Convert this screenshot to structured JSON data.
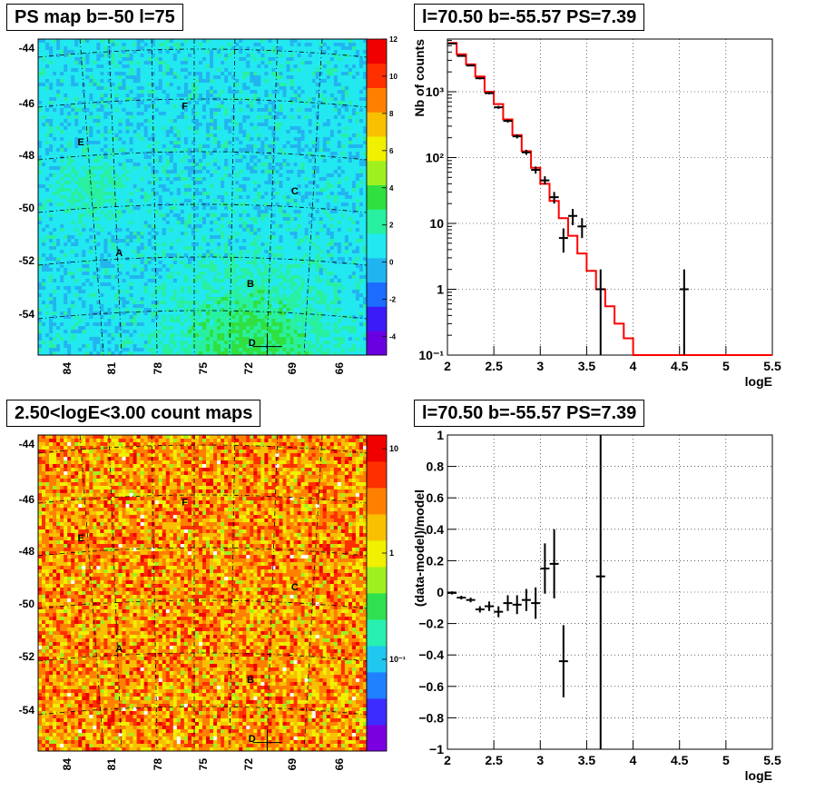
{
  "panels": {
    "ps_map_title": "PS map b=-50 l=75",
    "spectrum_title": "l=70.50 b=-55.57 PS=7.39",
    "count_map_title": "2.50<logE<3.00 count maps",
    "residual_title": "l=70.50 b=-55.57 PS=7.39"
  },
  "chart_data": [
    {
      "type": "heatmap",
      "title": "PS map b=-50 l=75",
      "colormap": [
        "#6a00e0",
        "#3b1cf8",
        "#1c6cff",
        "#22b4f0",
        "#22e8f0",
        "#28f0a0",
        "#30e040",
        "#a0f020",
        "#f0f000",
        "#f8c000",
        "#ff8000",
        "#ff3000",
        "#f00000"
      ],
      "colorbar": {
        "ticks": [
          "12",
          "10",
          "8",
          "6",
          "4",
          "2",
          "0",
          "-2",
          "-4"
        ],
        "range": [
          -5,
          12
        ]
      },
      "y_ticks": [
        "-44",
        "-46",
        "-48",
        "-50",
        "-52",
        "-54"
      ],
      "x_ticks": [
        "84",
        "81",
        "78",
        "75",
        "72",
        "69",
        "66"
      ],
      "sources": [
        {
          "label": "F",
          "lon": 75.9,
          "lat": -46.2
        },
        {
          "label": "E",
          "lon": 82.7,
          "lat": -47.6
        },
        {
          "label": "C",
          "lon": 68.7,
          "lat": -49.5
        },
        {
          "label": "A",
          "lon": 80.2,
          "lat": -51.9
        },
        {
          "label": "B",
          "lon": 71.6,
          "lat": -53.1
        },
        {
          "label": "D",
          "lon": 71.5,
          "lat": -55.4
        }
      ],
      "marker": {
        "lon": 70.5,
        "lat": -55.57
      }
    },
    {
      "type": "line",
      "title": "l=70.50 b=-55.57 PS=7.39",
      "xlabel": "logE",
      "ylabel": "Nb of counts",
      "x_ticks": [
        "2",
        "2.5",
        "3",
        "3.5",
        "4",
        "4.5",
        "5",
        "5.5"
      ],
      "y_ticks": [
        "10⁻¹",
        "1",
        "10",
        "10²",
        "10³"
      ],
      "xlim": [
        2,
        5.5
      ],
      "ylim_log10": [
        -1,
        3.8
      ],
      "log_y": true,
      "model_series": {
        "name": "model",
        "color": "#ff0000",
        "bins": [
          2.0,
          2.1,
          2.2,
          2.3,
          2.4,
          2.5,
          2.6,
          2.7,
          2.8,
          2.9,
          3.0,
          3.1,
          3.2,
          3.3,
          3.4,
          3.5,
          3.6,
          3.7,
          3.8,
          3.9,
          4.0,
          5.5
        ],
        "values": [
          5500,
          3700,
          2600,
          1700,
          1000,
          650,
          380,
          220,
          125,
          70,
          40,
          22,
          12,
          6.5,
          3.5,
          1.9,
          1.0,
          0.55,
          0.3,
          0.18,
          0.1
        ]
      },
      "data_series": {
        "name": "data",
        "color": "#000000",
        "points": [
          {
            "x": 2.05,
            "y": 5400,
            "lo": 5300,
            "hi": 5500
          },
          {
            "x": 2.15,
            "y": 3500,
            "lo": 3420,
            "hi": 3580
          },
          {
            "x": 2.25,
            "y": 2500,
            "lo": 2430,
            "hi": 2570
          },
          {
            "x": 2.35,
            "y": 1600,
            "lo": 1540,
            "hi": 1660
          },
          {
            "x": 2.45,
            "y": 950,
            "lo": 910,
            "hi": 990
          },
          {
            "x": 2.55,
            "y": 580,
            "lo": 550,
            "hi": 610
          },
          {
            "x": 2.65,
            "y": 360,
            "lo": 340,
            "hi": 380
          },
          {
            "x": 2.75,
            "y": 210,
            "lo": 195,
            "hi": 225
          },
          {
            "x": 2.85,
            "y": 120,
            "lo": 110,
            "hi": 131
          },
          {
            "x": 2.95,
            "y": 65,
            "lo": 57,
            "hi": 73
          },
          {
            "x": 3.05,
            "y": 45,
            "lo": 39,
            "hi": 52
          },
          {
            "x": 3.15,
            "y": 25,
            "lo": 20,
            "hi": 30
          },
          {
            "x": 3.25,
            "y": 6,
            "lo": 3.6,
            "hi": 8.4
          },
          {
            "x": 3.35,
            "y": 13,
            "lo": 9.4,
            "hi": 16.6
          },
          {
            "x": 3.45,
            "y": 9,
            "lo": 6,
            "hi": 12
          },
          {
            "x": 3.65,
            "y": 1,
            "lo": 0.1,
            "hi": 2
          },
          {
            "x": 4.55,
            "y": 1,
            "lo": 0.1,
            "hi": 2
          }
        ]
      }
    },
    {
      "type": "heatmap",
      "title": "2.50<logE<3.00 count maps",
      "colormap": [
        "#7a00e0",
        "#3c2cff",
        "#2080ff",
        "#20c8f0",
        "#28f0b0",
        "#30e050",
        "#a0f020",
        "#f0f000",
        "#f8c000",
        "#ff8000",
        "#ff3000",
        "#f00000"
      ],
      "log_colorbar": true,
      "colorbar": {
        "ticks": [
          "10",
          "1",
          "10⁻¹"
        ]
      },
      "y_ticks": [
        "-44",
        "-46",
        "-48",
        "-50",
        "-52",
        "-54"
      ],
      "x_ticks": [
        "84",
        "81",
        "78",
        "75",
        "72",
        "69",
        "66"
      ],
      "sources": [
        {
          "label": "F",
          "lon": 75.9,
          "lat": -46.2
        },
        {
          "label": "E",
          "lon": 82.7,
          "lat": -47.6
        },
        {
          "label": "C",
          "lon": 68.7,
          "lat": -49.5
        },
        {
          "label": "A",
          "lon": 80.2,
          "lat": -51.9
        },
        {
          "label": "B",
          "lon": 71.6,
          "lat": -53.1
        },
        {
          "label": "D",
          "lon": 71.5,
          "lat": -55.4
        }
      ],
      "marker": {
        "lon": 70.5,
        "lat": -55.57
      }
    },
    {
      "type": "scatter",
      "title": "l=70.50 b=-55.57 PS=7.39",
      "xlabel": "logE",
      "ylabel": "(data-model)/model",
      "x_ticks": [
        "2",
        "2.5",
        "3",
        "3.5",
        "4",
        "4.5",
        "5",
        "5.5"
      ],
      "y_ticks": [
        "1",
        "0.8",
        "0.6",
        "0.4",
        "0.2",
        "0",
        "−0.2",
        "−0.4",
        "−0.6",
        "−0.8",
        "−1"
      ],
      "xlim": [
        2,
        5.5
      ],
      "ylim": [
        -1,
        1
      ],
      "points": [
        {
          "x": 2.05,
          "y": -0.005,
          "e": 0.01
        },
        {
          "x": 2.15,
          "y": -0.035,
          "e": 0.012
        },
        {
          "x": 2.25,
          "y": -0.05,
          "e": 0.015
        },
        {
          "x": 2.35,
          "y": -0.11,
          "e": 0.02
        },
        {
          "x": 2.45,
          "y": -0.09,
          "e": 0.03
        },
        {
          "x": 2.55,
          "y": -0.125,
          "e": 0.035
        },
        {
          "x": 2.65,
          "y": -0.07,
          "e": 0.05
        },
        {
          "x": 2.75,
          "y": -0.08,
          "e": 0.06
        },
        {
          "x": 2.85,
          "y": -0.05,
          "e": 0.07
        },
        {
          "x": 2.95,
          "y": -0.07,
          "e": 0.1
        },
        {
          "x": 3.05,
          "y": 0.15,
          "e": 0.16
        },
        {
          "x": 3.15,
          "y": 0.18,
          "e": 0.22
        },
        {
          "x": 3.25,
          "y": -0.44,
          "e": 0.23
        },
        {
          "x": 3.65,
          "y": 0.1,
          "e": 1.2
        }
      ]
    }
  ]
}
